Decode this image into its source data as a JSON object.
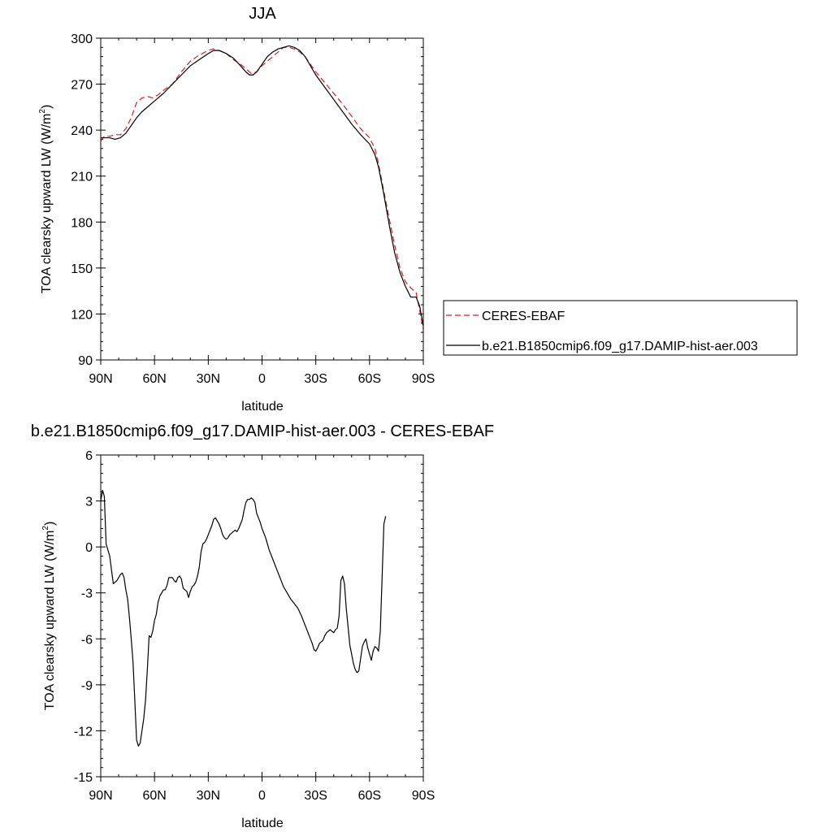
{
  "chart_data": [
    {
      "type": "line",
      "title": "JJA",
      "xlabel": "latitude",
      "ylabel": "TOA clearsky upward LW (W/m",
      "ylabel_sup": "2",
      "ylabel_end": ")",
      "xlim": [
        90,
        -90
      ],
      "ylim": [
        90,
        300
      ],
      "xticks": [
        90,
        60,
        30,
        0,
        -30,
        -60,
        -90
      ],
      "xtick_labels": [
        "90N",
        "60N",
        "30N",
        "0",
        "30S",
        "60S",
        "90S"
      ],
      "yticks": [
        90,
        120,
        150,
        180,
        210,
        240,
        270,
        300
      ],
      "ytick_labels": [
        "90",
        "120",
        "150",
        "180",
        "210",
        "240",
        "270",
        "300"
      ],
      "legend_position": "right",
      "series": [
        {
          "name": "CERES-EBAF",
          "color": "#e8191c",
          "dash": "dashed",
          "points": [
            [
              90,
              233
            ],
            [
              88,
              236
            ],
            [
              85,
              236
            ],
            [
              82,
              237
            ],
            [
              79,
              237
            ],
            [
              76,
              241
            ],
            [
              73,
              248
            ],
            [
              70,
              258
            ],
            [
              67,
              261
            ],
            [
              64,
              262
            ],
            [
              61,
              261
            ],
            [
              58,
              263
            ],
            [
              55,
              266
            ],
            [
              50,
              270
            ],
            [
              45,
              278
            ],
            [
              40,
              285
            ],
            [
              35,
              289
            ],
            [
              30,
              292
            ],
            [
              27,
              293
            ],
            [
              24,
              292
            ],
            [
              20,
              290
            ],
            [
              16,
              286
            ],
            [
              12,
              283
            ],
            [
              8,
              279
            ],
            [
              6,
              277
            ],
            [
              3,
              278
            ],
            [
              0,
              282
            ],
            [
              -3,
              285
            ],
            [
              -6,
              288
            ],
            [
              -9,
              291
            ],
            [
              -12,
              294
            ],
            [
              -15,
              294
            ],
            [
              -18,
              293
            ],
            [
              -21,
              291
            ],
            [
              -24,
              288
            ],
            [
              -27,
              283
            ],
            [
              -30,
              278
            ],
            [
              -35,
              271
            ],
            [
              -40,
              264
            ],
            [
              -45,
              257
            ],
            [
              -50,
              249
            ],
            [
              -55,
              241
            ],
            [
              -60,
              235
            ],
            [
              -63,
              228
            ],
            [
              -65,
              218
            ],
            [
              -68,
              200
            ],
            [
              -71,
              182
            ],
            [
              -74,
              165
            ],
            [
              -77,
              150
            ],
            [
              -80,
              141
            ],
            [
              -83,
              137
            ],
            [
              -86,
              134
            ],
            [
              -88,
              122
            ],
            [
              -90,
              110
            ]
          ]
        },
        {
          "name": "b.e21.B1850cmip6.f09_g17.DAMIP-hist-aer.003",
          "color": "#000000",
          "dash": "solid",
          "points": [
            [
              90,
              235
            ],
            [
              88,
              235
            ],
            [
              85,
              235
            ],
            [
              82,
              234
            ],
            [
              79,
              235
            ],
            [
              76,
              238
            ],
            [
              73,
              243
            ],
            [
              70,
              248
            ],
            [
              67,
              252
            ],
            [
              64,
              255
            ],
            [
              61,
              258
            ],
            [
              58,
              261
            ],
            [
              55,
              264
            ],
            [
              50,
              270
            ],
            [
              45,
              276
            ],
            [
              40,
              282
            ],
            [
              35,
              286
            ],
            [
              30,
              290
            ],
            [
              27,
              292
            ],
            [
              24,
              292
            ],
            [
              20,
              290
            ],
            [
              16,
              287
            ],
            [
              12,
              282
            ],
            [
              9,
              278
            ],
            [
              7,
              276
            ],
            [
              5,
              276
            ],
            [
              3,
              278
            ],
            [
              0,
              283
            ],
            [
              -3,
              288
            ],
            [
              -6,
              291
            ],
            [
              -9,
              293
            ],
            [
              -12,
              294
            ],
            [
              -15,
              295
            ],
            [
              -18,
              294
            ],
            [
              -21,
              292
            ],
            [
              -24,
              288
            ],
            [
              -27,
              282
            ],
            [
              -30,
              276
            ],
            [
              -35,
              268
            ],
            [
              -40,
              260
            ],
            [
              -45,
              252
            ],
            [
              -50,
              244
            ],
            [
              -55,
              237
            ],
            [
              -60,
              231
            ],
            [
              -63,
              224
            ],
            [
              -65,
              216
            ],
            [
              -68,
              198
            ],
            [
              -71,
              178
            ],
            [
              -74,
              160
            ],
            [
              -77,
              147
            ],
            [
              -80,
              138
            ],
            [
              -83,
              131
            ],
            [
              -86,
              131
            ],
            [
              -88,
              125
            ],
            [
              -90,
              112
            ]
          ]
        }
      ]
    },
    {
      "type": "line",
      "title": "b.e21.B1850cmip6.f09_g17.DAMIP-hist-aer.003 - CERES-EBAF",
      "xlabel": "latitude",
      "ylabel": "TOA clearsky upward LW (W/m",
      "ylabel_sup": "2",
      "ylabel_end": ")",
      "xlim": [
        90,
        -90
      ],
      "ylim": [
        -15,
        6
      ],
      "xticks": [
        90,
        60,
        30,
        0,
        -30,
        -60,
        -90
      ],
      "xtick_labels": [
        "90N",
        "60N",
        "30N",
        "0",
        "30S",
        "60S",
        "90S"
      ],
      "yticks": [
        -15,
        -12,
        -9,
        -6,
        -3,
        0,
        3,
        6
      ],
      "ytick_labels": [
        "-15",
        "-12",
        "-9",
        "-6",
        "-3",
        "0",
        "3",
        "6"
      ],
      "series": [
        {
          "color": "#000000",
          "dash": "solid",
          "points": [
            [
              90,
              3.0
            ],
            [
              89,
              3.7
            ],
            [
              88,
              3.3
            ],
            [
              87,
              0.2
            ],
            [
              85,
              -0.6
            ],
            [
              83,
              -2.4
            ],
            [
              81,
              -2.2
            ],
            [
              79,
              -1.8
            ],
            [
              78,
              -1.7
            ],
            [
              77,
              -2.0
            ],
            [
              76,
              -2.8
            ],
            [
              75,
              -3.4
            ],
            [
              74,
              -4.6
            ],
            [
              73,
              -6.0
            ],
            [
              72,
              -7.5
            ],
            [
              71,
              -10.0
            ],
            [
              70,
              -12.6
            ],
            [
              69,
              -13.0
            ],
            [
              68,
              -12.8
            ],
            [
              67,
              -12.0
            ],
            [
              66,
              -11.2
            ],
            [
              65,
              -10.0
            ],
            [
              64,
              -8.0
            ],
            [
              63,
              -5.8
            ],
            [
              62,
              -5.9
            ],
            [
              61,
              -5.5
            ],
            [
              60,
              -4.8
            ],
            [
              59,
              -4.4
            ],
            [
              58,
              -3.6
            ],
            [
              57,
              -3.2
            ],
            [
              56,
              -3.0
            ],
            [
              55,
              -2.8
            ],
            [
              54,
              -2.8
            ],
            [
              53,
              -2.5
            ],
            [
              52,
              -2.0
            ],
            [
              50,
              -2.0
            ],
            [
              49,
              -2.2
            ],
            [
              48,
              -2.3
            ],
            [
              47,
              -2.0
            ],
            [
              46,
              -1.9
            ],
            [
              45,
              -2.1
            ],
            [
              44,
              -2.7
            ],
            [
              43,
              -2.8
            ],
            [
              42,
              -2.9
            ],
            [
              41,
              -3.3
            ],
            [
              40,
              -2.9
            ],
            [
              39,
              -2.6
            ],
            [
              38,
              -2.5
            ],
            [
              37,
              -2.3
            ],
            [
              36,
              -1.9
            ],
            [
              35,
              -1.3
            ],
            [
              34,
              -0.3
            ],
            [
              33,
              0.2
            ],
            [
              32,
              0.3
            ],
            [
              31,
              0.5
            ],
            [
              30,
              0.8
            ],
            [
              29,
              1.1
            ],
            [
              28,
              1.4
            ],
            [
              27,
              1.8
            ],
            [
              26,
              1.9
            ],
            [
              25,
              1.7
            ],
            [
              24,
              1.5
            ],
            [
              23,
              1.2
            ],
            [
              22,
              0.8
            ],
            [
              21,
              0.6
            ],
            [
              20,
              0.5
            ],
            [
              19,
              0.6
            ],
            [
              18,
              0.8
            ],
            [
              17,
              0.9
            ],
            [
              16,
              1.0
            ],
            [
              15,
              1.1
            ],
            [
              14,
              1.0
            ],
            [
              13,
              1.2
            ],
            [
              12,
              1.5
            ],
            [
              11,
              1.8
            ],
            [
              10,
              2.4
            ],
            [
              9,
              2.9
            ],
            [
              8,
              3.1
            ],
            [
              7,
              3.1
            ],
            [
              6,
              3.2
            ],
            [
              5,
              3.1
            ],
            [
              4,
              2.9
            ],
            [
              3,
              2.2
            ],
            [
              2,
              1.9
            ],
            [
              1,
              1.6
            ],
            [
              0,
              1.2
            ],
            [
              -2,
              0.6
            ],
            [
              -4,
              -0.2
            ],
            [
              -6,
              -0.8
            ],
            [
              -8,
              -1.4
            ],
            [
              -10,
              -2.0
            ],
            [
              -12,
              -2.6
            ],
            [
              -14,
              -3.0
            ],
            [
              -16,
              -3.4
            ],
            [
              -18,
              -3.7
            ],
            [
              -20,
              -4.0
            ],
            [
              -22,
              -4.5
            ],
            [
              -24,
              -5.1
            ],
            [
              -26,
              -5.7
            ],
            [
              -28,
              -6.3
            ],
            [
              -29,
              -6.7
            ],
            [
              -30,
              -6.8
            ],
            [
              -31,
              -6.6
            ],
            [
              -32,
              -6.3
            ],
            [
              -33,
              -6.2
            ],
            [
              -34,
              -6.1
            ],
            [
              -35,
              -5.8
            ],
            [
              -36,
              -5.6
            ],
            [
              -37,
              -5.5
            ],
            [
              -38,
              -5.4
            ],
            [
              -39,
              -5.5
            ],
            [
              -40,
              -5.6
            ],
            [
              -41,
              -5.4
            ],
            [
              -42,
              -5.3
            ],
            [
              -43,
              -4.5
            ],
            [
              -44,
              -2.2
            ],
            [
              -45,
              -1.9
            ],
            [
              -46,
              -2.4
            ],
            [
              -47,
              -4.0
            ],
            [
              -48,
              -5.2
            ],
            [
              -49,
              -6.4
            ],
            [
              -50,
              -7.0
            ],
            [
              -51,
              -7.6
            ],
            [
              -52,
              -8.0
            ],
            [
              -53,
              -8.2
            ],
            [
              -54,
              -8.1
            ],
            [
              -55,
              -7.3
            ],
            [
              -56,
              -6.5
            ],
            [
              -57,
              -6.2
            ],
            [
              -58,
              -6.0
            ],
            [
              -59,
              -6.6
            ],
            [
              -60,
              -7.0
            ],
            [
              -61,
              -7.4
            ],
            [
              -62,
              -6.8
            ],
            [
              -63,
              -6.5
            ],
            [
              -64,
              -6.6
            ],
            [
              -65,
              -6.8
            ],
            [
              -66,
              -5.5
            ],
            [
              -67,
              -2.0
            ],
            [
              -68,
              1.5
            ],
            [
              -69,
              2.0
            ]
          ]
        }
      ]
    }
  ]
}
